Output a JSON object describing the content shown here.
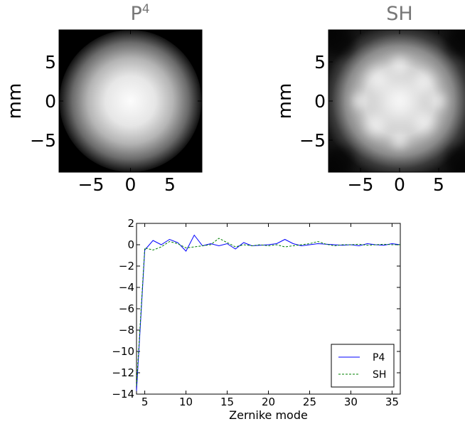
{
  "chart_data": [
    {
      "type": "heatmap",
      "title": "P4",
      "title_base": "P",
      "title_sup": "4",
      "ylabel": "mm",
      "xlabel": "",
      "xlim": [
        -9,
        9
      ],
      "ylim": [
        -9,
        9
      ],
      "xticks": [
        "−5",
        "0",
        "5"
      ],
      "yticks": [
        "5",
        "0",
        "−5"
      ],
      "pupil_radius_mm": 8.9,
      "background": "#7f7f7f",
      "colormap": "gray"
    },
    {
      "type": "heatmap",
      "title": "SH",
      "ylabel": "mm",
      "xlabel": "",
      "xlim": [
        -9,
        9
      ],
      "ylim": [
        -9,
        9
      ],
      "xticks": [
        "−5",
        "0",
        "5"
      ],
      "yticks": [
        "5",
        "0",
        "−5"
      ],
      "colormap": "gray"
    },
    {
      "type": "line",
      "title": "",
      "xlabel": "Zernike mode",
      "ylabel": "",
      "xlim": [
        4,
        36
      ],
      "ylim": [
        -14,
        2
      ],
      "xticks": [
        5,
        10,
        15,
        20,
        25,
        30,
        35
      ],
      "yticks": [
        2,
        0,
        -2,
        -4,
        -6,
        -8,
        -10,
        -12,
        -14
      ],
      "grid": false,
      "legend_position": "lower-right",
      "x": [
        4,
        5,
        6,
        7,
        8,
        9,
        10,
        11,
        12,
        13,
        14,
        15,
        16,
        17,
        18,
        19,
        20,
        21,
        22,
        23,
        24,
        25,
        26,
        27,
        28,
        29,
        30,
        31,
        32,
        33,
        34,
        35,
        36
      ],
      "series": [
        {
          "name": "P4",
          "color": "#0000ff",
          "style": "solid",
          "values": [
            -13.7,
            -0.5,
            0.4,
            0.0,
            0.5,
            0.2,
            -0.6,
            0.9,
            -0.1,
            0.1,
            -0.1,
            0.1,
            -0.4,
            0.2,
            -0.1,
            -0.05,
            0.0,
            0.1,
            0.5,
            0.1,
            -0.1,
            0.0,
            0.1,
            0.05,
            0.0,
            -0.05,
            0.0,
            -0.1,
            0.1,
            0.0,
            -0.05,
            0.1,
            0.0
          ]
        },
        {
          "name": "SH",
          "color": "#008000",
          "style": "dashed",
          "values": [
            -13.2,
            -0.3,
            -0.5,
            -0.2,
            0.3,
            0.1,
            -0.3,
            -0.2,
            -0.1,
            0.0,
            0.6,
            0.2,
            -0.2,
            0.0,
            -0.1,
            0.0,
            -0.1,
            0.0,
            -0.2,
            -0.1,
            0.0,
            0.1,
            0.3,
            0.05,
            -0.1,
            0.0,
            0.0,
            0.05,
            -0.05,
            0.0,
            0.05,
            0.0,
            0.0
          ]
        }
      ]
    }
  ]
}
